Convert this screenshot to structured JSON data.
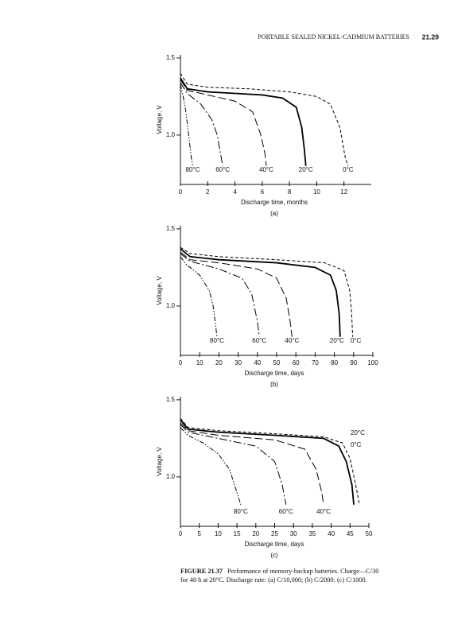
{
  "header": {
    "title": "PORTABLE SEALED NICKEL-CADMIUM BATTERIES",
    "page": "21.29"
  },
  "chart_data": [
    {
      "type": "line",
      "panel": "(a)",
      "xlabel": "Discharge time, months",
      "ylabel": "Voltage, V",
      "color": "#000000",
      "xlim": [
        0,
        14
      ],
      "ylim": [
        0.68,
        1.52
      ],
      "xticks": [
        0,
        2,
        4,
        6,
        8,
        10,
        12
      ],
      "yticks": [
        {
          "value": 1,
          "label": "1.0"
        },
        {
          "value": 1.5,
          "label": "1.5"
        }
      ],
      "series": [
        {
          "name": "0°C",
          "style": "dashed",
          "x": [
            0,
            0.5,
            2,
            5,
            8,
            10,
            11,
            11.7,
            12.1,
            12.3
          ],
          "values": [
            1.4,
            1.33,
            1.31,
            1.3,
            1.28,
            1.25,
            1.2,
            1.05,
            0.85,
            0.8
          ]
        },
        {
          "name": "20°C",
          "style": "solid",
          "x": [
            0,
            0.5,
            2,
            4,
            6,
            7.5,
            8.5,
            8.9,
            9.1,
            9.2
          ],
          "values": [
            1.37,
            1.3,
            1.28,
            1.27,
            1.26,
            1.24,
            1.18,
            1.05,
            0.9,
            0.8
          ]
        },
        {
          "name": "40°C",
          "style": "longdash",
          "x": [
            0,
            0.5,
            2,
            4,
            5.3,
            5.9,
            6.2,
            6.3
          ],
          "values": [
            1.36,
            1.29,
            1.26,
            1.22,
            1.15,
            1.0,
            0.88,
            0.8
          ]
        },
        {
          "name": "60°C",
          "style": "dashdot",
          "x": [
            0,
            0.5,
            1.5,
            2.3,
            2.7,
            3,
            3.1
          ],
          "values": [
            1.34,
            1.27,
            1.2,
            1.1,
            1.0,
            0.85,
            0.8
          ]
        },
        {
          "name": "80°C",
          "style": "dashdotdot",
          "x": [
            0,
            0.2,
            0.4,
            0.6,
            0.8,
            0.9
          ],
          "values": [
            1.33,
            1.25,
            1.15,
            1.0,
            0.85,
            0.8
          ]
        }
      ]
    },
    {
      "type": "line",
      "panel": "(b)",
      "xlabel": "Discharge time, days",
      "ylabel": "Voltage, V",
      "color": "#000000",
      "xlim": [
        0,
        100
      ],
      "ylim": [
        0.68,
        1.52
      ],
      "xticks": [
        0,
        10,
        20,
        30,
        40,
        50,
        60,
        70,
        80,
        90,
        100
      ],
      "yticks": [
        {
          "value": 1,
          "label": "1.0"
        },
        {
          "value": 1.5,
          "label": "1.5"
        }
      ],
      "series": [
        {
          "name": "0°C",
          "style": "dashed",
          "x": [
            0,
            5,
            20,
            50,
            75,
            85,
            88,
            89,
            89.5
          ],
          "values": [
            1.38,
            1.34,
            1.32,
            1.3,
            1.28,
            1.23,
            1.1,
            0.95,
            0.8
          ]
        },
        {
          "name": "20°C",
          "style": "solid",
          "x": [
            0,
            5,
            20,
            50,
            70,
            78,
            81,
            82.5,
            83
          ],
          "values": [
            1.37,
            1.32,
            1.3,
            1.28,
            1.25,
            1.2,
            1.1,
            0.95,
            0.8
          ]
        },
        {
          "name": "40°C",
          "style": "longdash",
          "x": [
            0,
            5,
            20,
            40,
            50,
            55,
            57,
            58
          ],
          "values": [
            1.35,
            1.3,
            1.28,
            1.24,
            1.18,
            1.05,
            0.9,
            0.8
          ]
        },
        {
          "name": "60°C",
          "style": "dashdot",
          "x": [
            0,
            5,
            20,
            32,
            37,
            40,
            41
          ],
          "values": [
            1.34,
            1.29,
            1.24,
            1.18,
            1.08,
            0.9,
            0.8
          ]
        },
        {
          "name": "80°C",
          "style": "dashdotdot",
          "x": [
            0,
            3,
            10,
            15,
            17,
            18.5,
            19
          ],
          "values": [
            1.32,
            1.27,
            1.2,
            1.1,
            1.0,
            0.85,
            0.8
          ]
        }
      ]
    },
    {
      "type": "line",
      "panel": "(c)",
      "xlabel": "Discharge time, days",
      "ylabel": "Voltage, V",
      "color": "#000000",
      "xlim": [
        0,
        50
      ],
      "ylim": [
        0.68,
        1.52
      ],
      "xticks": [
        0,
        5,
        10,
        15,
        20,
        25,
        30,
        35,
        40,
        45,
        50
      ],
      "yticks": [
        {
          "value": 1,
          "label": "1.0"
        },
        {
          "value": 1.5,
          "label": "1.5"
        }
      ],
      "series": [
        {
          "name": "0°C",
          "style": "dashed",
          "x": [
            0,
            2,
            10,
            25,
            38,
            43,
            45,
            46.5,
            47.5
          ],
          "values": [
            1.38,
            1.32,
            1.3,
            1.28,
            1.26,
            1.22,
            1.12,
            0.95,
            0.82
          ]
        },
        {
          "name": "20°C",
          "style": "solid",
          "x": [
            0,
            2,
            10,
            25,
            38,
            42,
            44,
            45.5,
            46
          ],
          "values": [
            1.37,
            1.31,
            1.29,
            1.27,
            1.25,
            1.2,
            1.1,
            0.95,
            0.82
          ]
        },
        {
          "name": "40°C",
          "style": "longdash",
          "x": [
            0,
            2,
            10,
            25,
            33,
            36,
            37.5,
            38
          ],
          "values": [
            1.35,
            1.3,
            1.27,
            1.24,
            1.18,
            1.05,
            0.9,
            0.82
          ]
        },
        {
          "name": "60°C",
          "style": "dashdot",
          "x": [
            0,
            2,
            10,
            20,
            25,
            27,
            28
          ],
          "values": [
            1.34,
            1.29,
            1.25,
            1.2,
            1.1,
            0.95,
            0.82
          ]
        },
        {
          "name": "80°C",
          "style": "dashdotdot",
          "x": [
            0,
            2,
            6,
            10,
            13,
            15,
            16
          ],
          "values": [
            1.32,
            1.27,
            1.22,
            1.15,
            1.05,
            0.9,
            0.82
          ]
        }
      ]
    }
  ],
  "caption": {
    "label": "FIGURE 21.37",
    "text": "Performance of memory-backup batteries. Charge—C/30 for 48 h at 20°C. Discharge rate: (a) C/10,000; (b) C/2000; (c) C/1000."
  }
}
